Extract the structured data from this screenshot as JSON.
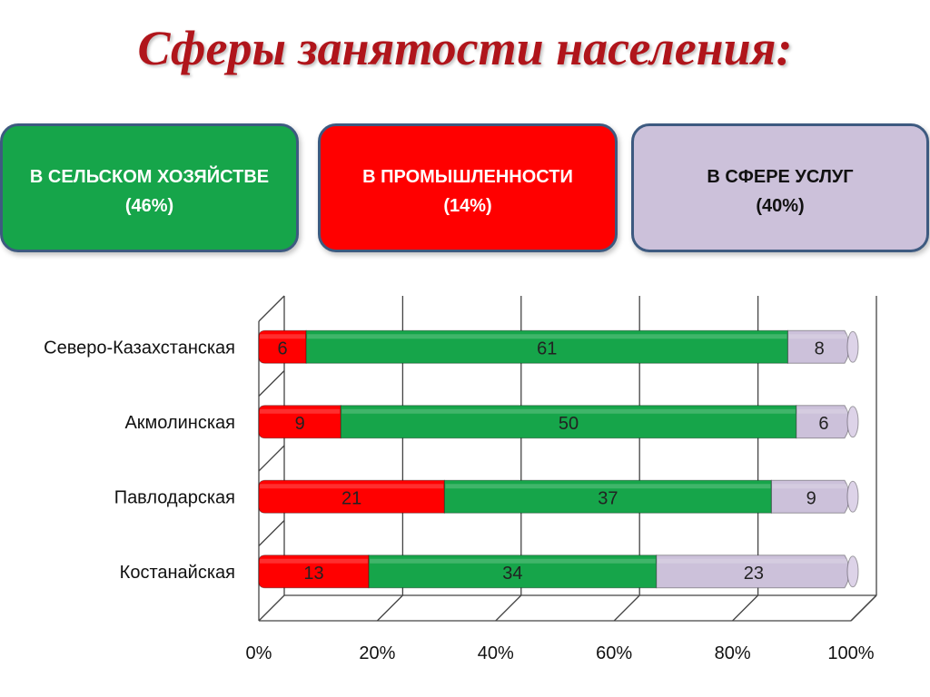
{
  "title": "Сферы занятости населения:",
  "cards": [
    {
      "label": "В СЕЛЬСКОМ ХОЗЯЙСТВЕ",
      "value": "(46%)",
      "color": "#16a54a"
    },
    {
      "label": "В ПРОМЫШЛЕННОСТИ",
      "value": "(14%)",
      "color": "#ff0000"
    },
    {
      "label": "В СФЕРЕ УСЛУГ",
      "value": "(40%)",
      "color": "#ccc1da"
    }
  ],
  "chart_data": {
    "type": "bar",
    "orientation": "horizontal",
    "stacked": "100%",
    "categories": [
      "Северо-Казахстанская",
      "Акмолинская",
      "Павлодарская",
      "Костанайская"
    ],
    "series": [
      {
        "values": [
          6,
          9,
          21,
          13
        ],
        "color": "#ff0000"
      },
      {
        "values": [
          61,
          50,
          37,
          34
        ],
        "color": "#16a54a"
      },
      {
        "values": [
          8,
          6,
          9,
          23
        ],
        "color": "#ccc1da"
      }
    ],
    "x_ticks": [
      "0%",
      "20%",
      "40%",
      "60%",
      "80%",
      "100%"
    ],
    "xlim": [
      0,
      100
    ],
    "grid": true
  }
}
